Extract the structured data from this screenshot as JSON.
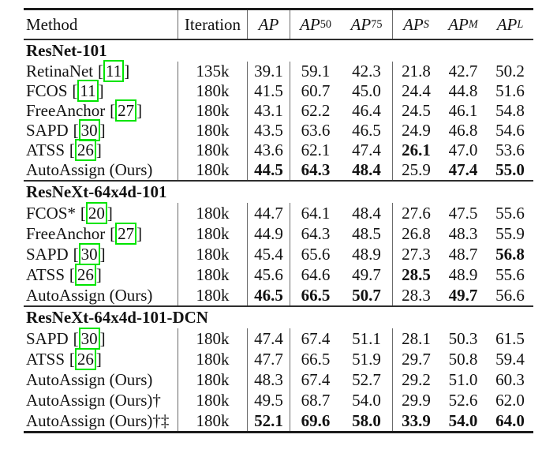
{
  "page": {
    "background": "#ffffff"
  },
  "colors": {
    "citation_box": "#00e400",
    "text": "#121212",
    "rule": "#1c1c1c"
  },
  "table": {
    "cite": {
      "open": "[",
      "close": "]"
    },
    "columns": {
      "method": "Method",
      "iteration": "Iteration",
      "metrics": [
        {
          "base": "AP",
          "sub": ""
        },
        {
          "base": "AP",
          "sub": "50"
        },
        {
          "base": "AP",
          "sub": "75"
        },
        {
          "base": "AP",
          "sub": "S"
        },
        {
          "base": "AP",
          "sub": "M"
        },
        {
          "base": "AP",
          "sub": "L"
        }
      ]
    },
    "sections": [
      {
        "title": "ResNet-101",
        "rows": [
          {
            "method": "RetinaNet",
            "cite": "11",
            "iteration": "135k",
            "ap": "39.1",
            "ap50": "59.1",
            "ap75": "42.3",
            "aps": "21.8",
            "apm": "42.7",
            "apl": "50.2"
          },
          {
            "method": "FCOS",
            "cite": "11",
            "iteration": "180k",
            "ap": "41.5",
            "ap50": "60.7",
            "ap75": "45.0",
            "aps": "24.4",
            "apm": "44.8",
            "apl": "51.6"
          },
          {
            "method": "FreeAnchor",
            "cite": "27",
            "iteration": "180k",
            "ap": "43.1",
            "ap50": "62.2",
            "ap75": "46.4",
            "aps": "24.5",
            "apm": "46.1",
            "apl": "54.8"
          },
          {
            "method": "SAPD",
            "cite": "30",
            "iteration": "180k",
            "ap": "43.5",
            "ap50": "63.6",
            "ap75": "46.5",
            "aps": "24.9",
            "apm": "46.8",
            "apl": "54.6"
          },
          {
            "method": "ATSS",
            "cite": "26",
            "iteration": "180k",
            "ap": "43.6",
            "ap50": "62.1",
            "ap75": "47.4",
            "aps": "26.1",
            "apm": "47.0",
            "apl": "53.6"
          },
          {
            "method": "AutoAssign (Ours)",
            "iteration": "180k",
            "ap": "44.5",
            "ap50": "64.3",
            "ap75": "48.4",
            "aps": "25.9",
            "apm": "47.4",
            "apl": "55.0"
          }
        ]
      },
      {
        "title": "ResNeXt-64x4d-101",
        "rows": [
          {
            "method": "FCOS*",
            "cite": "20",
            "iteration": "180k",
            "ap": "44.7",
            "ap50": "64.1",
            "ap75": "48.4",
            "aps": "27.6",
            "apm": "47.5",
            "apl": "55.6"
          },
          {
            "method": "FreeAnchor",
            "cite": "27",
            "iteration": "180k",
            "ap": "44.9",
            "ap50": "64.3",
            "ap75": "48.5",
            "aps": "26.8",
            "apm": "48.3",
            "apl": "55.9"
          },
          {
            "method": "SAPD",
            "cite": "30",
            "iteration": "180k",
            "ap": "45.4",
            "ap50": "65.6",
            "ap75": "48.9",
            "aps": "27.3",
            "apm": "48.7",
            "apl": "56.8"
          },
          {
            "method": "ATSS",
            "cite": "26",
            "iteration": "180k",
            "ap": "45.6",
            "ap50": "64.6",
            "ap75": "49.7",
            "aps": "28.5",
            "apm": "48.9",
            "apl": "55.6"
          },
          {
            "method": "AutoAssign (Ours)",
            "iteration": "180k",
            "ap": "46.5",
            "ap50": "66.5",
            "ap75": "50.7",
            "aps": "28.3",
            "apm": "49.7",
            "apl": "56.6"
          }
        ]
      },
      {
        "title": "ResNeXt-64x4d-101-DCN",
        "rows": [
          {
            "method": "SAPD",
            "cite": "30",
            "iteration": "180k",
            "ap": "47.4",
            "ap50": "67.4",
            "ap75": "51.1",
            "aps": "28.1",
            "apm": "50.3",
            "apl": "61.5"
          },
          {
            "method": "ATSS",
            "cite": "26",
            "iteration": "180k",
            "ap": "47.7",
            "ap50": "66.5",
            "ap75": "51.9",
            "aps": "29.7",
            "apm": "50.8",
            "apl": "59.4"
          },
          {
            "method": "AutoAssign (Ours)",
            "iteration": "180k",
            "ap": "48.3",
            "ap50": "67.4",
            "ap75": "52.7",
            "aps": "29.2",
            "apm": "51.0",
            "apl": "60.3"
          },
          {
            "method": "AutoAssign (Ours)†",
            "iteration": "180k",
            "ap": "49.5",
            "ap50": "68.7",
            "ap75": "54.0",
            "aps": "29.9",
            "apm": "52.6",
            "apl": "62.0"
          },
          {
            "method": "AutoAssign (Ours)†‡",
            "iteration": "180k",
            "ap": "52.1",
            "ap50": "69.6",
            "ap75": "58.0",
            "aps": "33.9",
            "apm": "54.0",
            "apl": "64.0"
          }
        ]
      }
    ]
  }
}
